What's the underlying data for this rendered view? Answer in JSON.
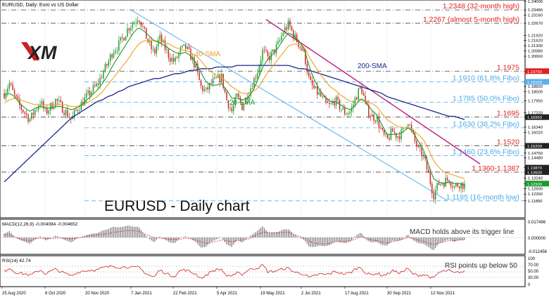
{
  "header": {
    "title": "EURUSD, Daily:  Euro vs US Dollar"
  },
  "logo": {
    "text": "XM"
  },
  "chart_title": "EURUSD - Daily chart",
  "chart_data": {
    "type": "line",
    "instrument": "EURUSD",
    "timeframe": "Daily",
    "ylim": [
      1.109,
      1.24
    ],
    "price_ticks": [
      1.24,
      1.2348,
      1.2316,
      1.2267,
      1.2192,
      1.2162,
      1.213,
      1.2098,
      1.2066,
      1.19752,
      1.191,
      1.1882,
      1.185,
      1.1795,
      1.1722,
      1.1695,
      1.1634,
      1.1602,
      1.152,
      1.1476,
      1.1448,
      1.1387,
      1.136,
      1.1324,
      1.129,
      1.126,
      1.1226,
      1.1185
    ],
    "price_tick_labels": [
      "1.24000",
      "1.23480",
      "1.23160",
      "1.22670",
      "1.21920",
      "1.21620",
      "1.21300",
      "1.20980",
      "1.20660",
      "1.19752",
      "1.19100",
      "1.18820",
      "1.18500",
      "1.17950",
      "1.17220",
      "1.16950",
      "1.16340",
      "1.16020",
      "1.15200",
      "1.14760",
      "1.14480",
      "1.13870",
      "1.13600",
      "1.13240",
      "1.12900",
      "1.12600",
      "1.12260",
      "1.11850"
    ],
    "date_labels": [
      "25 Aug 2020",
      "8 Oct 2020",
      "20 Nov 2020",
      "7 Jan 2021",
      "22 Feb 2021",
      "5 Apr 2021",
      "19 May 2021",
      "2 Jul 2021",
      "17 Aug 2021",
      "30 Sep 2021",
      "12 Nov 2021"
    ],
    "close_path": [
      1.184,
      1.19,
      1.182,
      1.176,
      1.172,
      1.168,
      1.174,
      1.179,
      1.172,
      1.176,
      1.18,
      1.176,
      1.172,
      1.168,
      1.174,
      1.178,
      1.182,
      1.186,
      1.189,
      1.196,
      1.202,
      1.21,
      1.213,
      1.218,
      1.224,
      1.227,
      1.231,
      1.222,
      1.214,
      1.208,
      1.218,
      1.212,
      1.206,
      1.203,
      1.21,
      1.212,
      1.207,
      1.2,
      1.188,
      1.185,
      1.19,
      1.192,
      1.194,
      1.18,
      1.173,
      1.182,
      1.176,
      1.183,
      1.19,
      1.198,
      1.21,
      1.205,
      1.209,
      1.214,
      1.222,
      1.226,
      1.219,
      1.214,
      1.208,
      1.191,
      1.186,
      1.183,
      1.178,
      1.176,
      1.18,
      1.175,
      1.172,
      1.173,
      1.182,
      1.188,
      1.175,
      1.17,
      1.169,
      1.16,
      1.155,
      1.161,
      1.158,
      1.16,
      1.168,
      1.158,
      1.15,
      1.146,
      1.135,
      1.122,
      1.129,
      1.13,
      1.132,
      1.127,
      1.129,
      1.128
    ],
    "sma20_path": [
      1.183,
      1.184,
      1.182,
      1.178,
      1.175,
      1.173,
      1.175,
      1.176,
      1.175,
      1.175,
      1.176,
      1.176,
      1.175,
      1.174,
      1.175,
      1.177,
      1.18,
      1.183,
      1.186,
      1.19,
      1.195,
      1.201,
      1.206,
      1.211,
      1.216,
      1.221,
      1.224,
      1.222,
      1.219,
      1.216,
      1.215,
      1.213,
      1.211,
      1.209,
      1.208,
      1.209,
      1.207,
      1.203,
      1.197,
      1.191,
      1.189,
      1.189,
      1.19,
      1.186,
      1.181,
      1.181,
      1.18,
      1.181,
      1.185,
      1.192,
      1.2,
      1.205,
      1.208,
      1.212,
      1.217,
      1.221,
      1.219,
      1.216,
      1.211,
      1.2,
      1.192,
      1.186,
      1.182,
      1.179,
      1.179,
      1.177,
      1.175,
      1.174,
      1.177,
      1.181,
      1.178,
      1.174,
      1.171,
      1.165,
      1.159,
      1.159,
      1.159,
      1.16,
      1.163,
      1.161,
      1.155,
      1.15,
      1.141,
      1.132,
      1.13,
      1.129,
      1.13,
      1.129,
      1.129,
      1.128
    ],
    "sma40_path": [
      1.178,
      1.18,
      1.181,
      1.18,
      1.179,
      1.178,
      1.177,
      1.177,
      1.177,
      1.177,
      1.177,
      1.177,
      1.177,
      1.176,
      1.176,
      1.177,
      1.178,
      1.18,
      1.182,
      1.185,
      1.189,
      1.193,
      1.197,
      1.201,
      1.205,
      1.21,
      1.214,
      1.216,
      1.216,
      1.216,
      1.216,
      1.215,
      1.214,
      1.212,
      1.211,
      1.21,
      1.209,
      1.207,
      1.204,
      1.2,
      1.197,
      1.195,
      1.194,
      1.191,
      1.188,
      1.186,
      1.184,
      1.184,
      1.185,
      1.187,
      1.192,
      1.197,
      1.201,
      1.205,
      1.209,
      1.213,
      1.214,
      1.214,
      1.212,
      1.206,
      1.201,
      1.196,
      1.192,
      1.188,
      1.186,
      1.183,
      1.181,
      1.179,
      1.179,
      1.18,
      1.179,
      1.178,
      1.176,
      1.172,
      1.168,
      1.166,
      1.164,
      1.163,
      1.163,
      1.162,
      1.159,
      1.156,
      1.15,
      1.143,
      1.139,
      1.136,
      1.135,
      1.134,
      1.133,
      1.132
    ],
    "sma200_path": [
      1.13,
      1.133,
      1.136,
      1.139,
      1.142,
      1.145,
      1.148,
      1.151,
      1.154,
      1.157,
      1.16,
      1.163,
      1.166,
      1.169,
      1.171,
      1.173,
      1.175,
      1.177,
      1.179,
      1.18,
      1.182,
      1.183,
      1.185,
      1.186,
      1.188,
      1.189,
      1.19,
      1.191,
      1.192,
      1.193,
      1.193,
      1.194,
      1.195,
      1.196,
      1.196,
      1.197,
      1.198,
      1.198,
      1.199,
      1.199,
      1.199,
      1.2,
      1.2,
      1.2,
      1.2,
      1.201,
      1.201,
      1.201,
      1.201,
      1.201,
      1.201,
      1.201,
      1.201,
      1.201,
      1.201,
      1.201,
      1.2,
      1.199,
      1.199,
      1.198,
      1.197,
      1.196,
      1.195,
      1.194,
      1.193,
      1.192,
      1.191,
      1.19,
      1.189,
      1.188,
      1.187,
      1.186,
      1.185,
      1.184,
      1.182,
      1.181,
      1.18,
      1.179,
      1.178,
      1.177,
      1.176,
      1.175,
      1.174,
      1.173,
      1.172,
      1.171,
      1.17,
      1.17,
      1.169,
      1.168
    ],
    "sma_labels": {
      "sma20": "20-SMA",
      "sma40": "40-SMA",
      "sma200": "200-SMA"
    },
    "levels": [
      {
        "price": 1.2348,
        "label": "1.2348 (32-month high)",
        "style": "dash-dot",
        "color": "#e02020"
      },
      {
        "price": 1.2267,
        "label": "1.2267 (almost 5-month high)",
        "style": "dash-dot",
        "color": "#e02020"
      },
      {
        "price": 1.1975,
        "label": "1.1975",
        "style": "dash-dot",
        "color": "#e02020"
      },
      {
        "price": 1.191,
        "label": "1.1910 (61.8% Fibo)",
        "style": "dash",
        "color": "#4aa8e8"
      },
      {
        "price": 1.1785,
        "label": "1.1785 (50.0% Fibo)",
        "style": "dash",
        "color": "#4aa8e8"
      },
      {
        "price": 1.1695,
        "label": "1.1695",
        "style": "dash-dot",
        "color": "#e02020"
      },
      {
        "price": 1.163,
        "label": "1.1630 (38.2% Fibo)",
        "style": "dash",
        "color": "#4aa8e8"
      },
      {
        "price": 1.152,
        "label": "1.1520",
        "style": "dash-dot",
        "color": "#e02020"
      },
      {
        "price": 1.146,
        "label": "1.1460 (23.6% Fibo)",
        "style": "dash",
        "color": "#4aa8e8"
      },
      {
        "price": 1.136,
        "label": "1.1360-1.1387",
        "style": "dash-dot",
        "color": "#e02020"
      },
      {
        "price": 1.1185,
        "label": "1.1185 (16-month low)",
        "style": "dash",
        "color": "#4aa8e8"
      }
    ],
    "annotations": {
      "macd_note": "MACD holds above its trigger line",
      "rsi_note": "RSI points up below 50"
    },
    "colors": {
      "sma20": "#1a9a2a",
      "sma40": "#f0a020",
      "sma200": "#1a2a8a",
      "bull": "#1a9a2a",
      "bear": "#d02020",
      "fibo": "#4aa8e8",
      "resistance": "#e02020",
      "trend": "#c02080"
    }
  },
  "macd": {
    "label": "MACD(12,26,9) -0.004084 -0.004652",
    "ticks": [
      "0.017496",
      "0.000000",
      "-0.012456"
    ]
  },
  "rsi": {
    "label": "RSI(14) 42.74",
    "ticks": [
      "100",
      "70.00",
      "50.00",
      "30.00",
      "0"
    ]
  }
}
